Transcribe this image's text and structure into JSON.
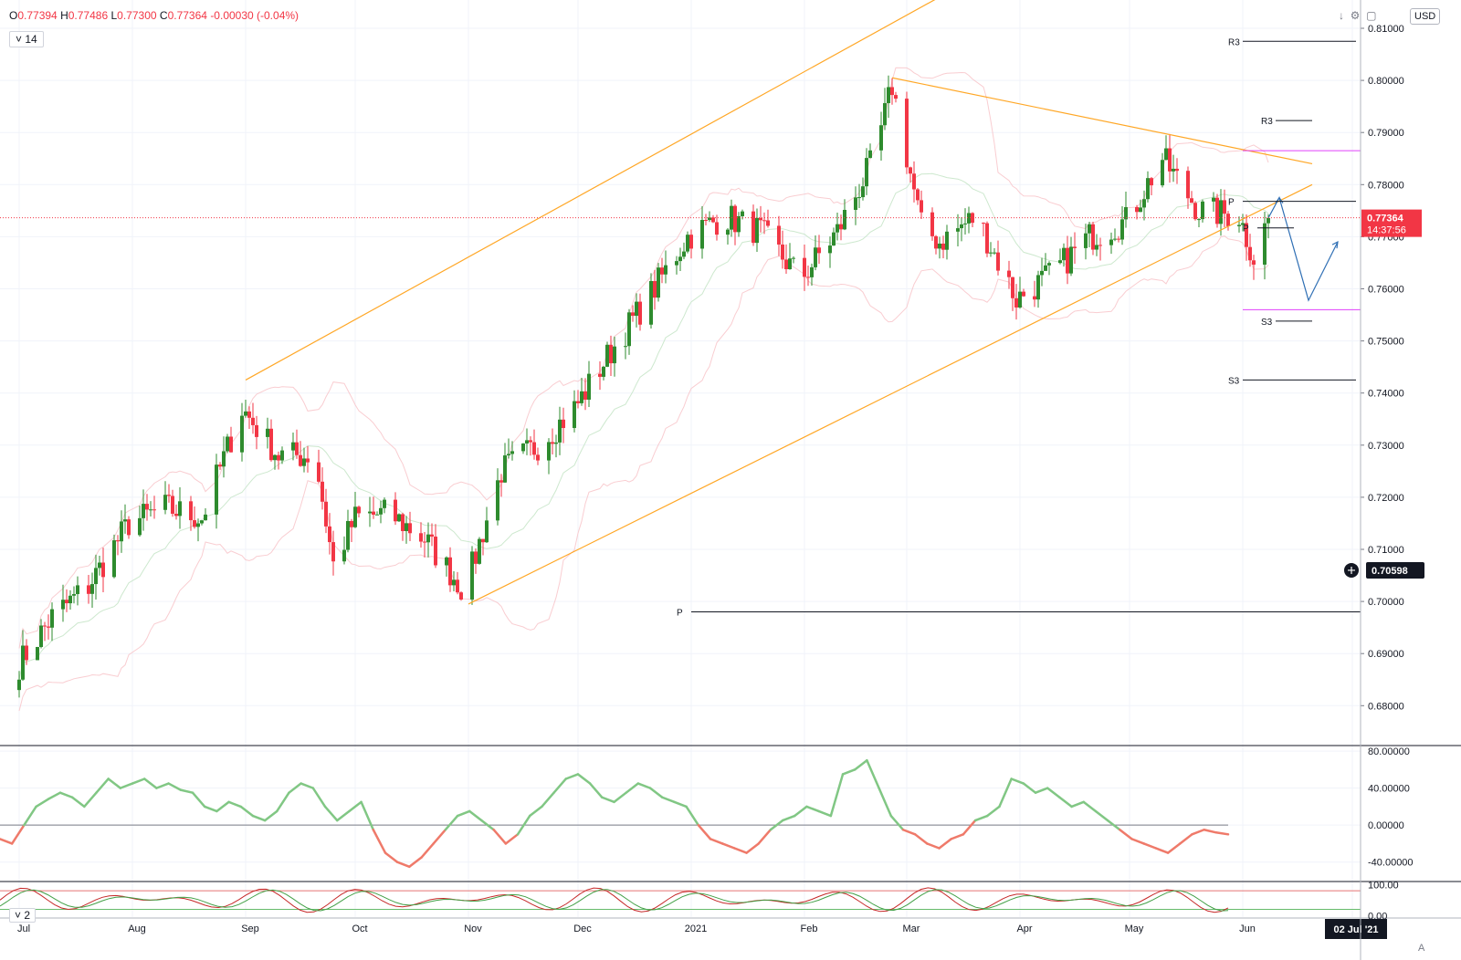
{
  "legend": {
    "open_key": "O",
    "open": "0.77394",
    "high_key": "H",
    "high": "0.77486",
    "low_key": "L",
    "low": "0.77300",
    "close_key": "C",
    "close": "0.77364",
    "change": "-0.00030 (-0.04%)"
  },
  "indicator_badge": "14",
  "indicator2_badge": "2",
  "currency_label": "USD",
  "auto_label": "A",
  "icons": {
    "down": "arrow-down-icon",
    "settings": "settings-icon",
    "expand": "expand-icon",
    "collapse": "chevron-down-icon"
  },
  "colors": {
    "up": "#2e8b2e",
    "down": "#f23645",
    "channel": "#ffa726",
    "pivot_magenta": "#e040fb",
    "rsi_up": "#81c784",
    "rsi_down": "#ef7a6a",
    "forecast": "#2f6fb4"
  },
  "price_labels": {
    "current": "0.77364",
    "countdown": "14:37:56",
    "crosshair": "0.70598"
  },
  "chart_data": [
    {
      "type": "candlestick",
      "symbol_currency": "USD",
      "x_labels": [
        "Jul",
        "Aug",
        "Sep",
        "Oct",
        "Nov",
        "Dec",
        "2021",
        "Feb",
        "Mar",
        "Apr",
        "May",
        "Jun"
      ],
      "date_badge": "02 Jul '21",
      "y_ticks": [
        "0.81000",
        "0.80000",
        "0.79000",
        "0.78000",
        "0.77000",
        "0.76000",
        "0.75000",
        "0.74000",
        "0.73000",
        "0.72000",
        "0.71000",
        "0.70000",
        "0.69000",
        "0.68000"
      ],
      "ylim": [
        0.6725,
        0.8125
      ],
      "close_path": [
        [
          "2020-07-01",
          0.688
        ],
        [
          "2020-07-10",
          0.697
        ],
        [
          "2020-07-20",
          0.703
        ],
        [
          "2020-07-31",
          0.715
        ],
        [
          "2020-08-10",
          0.718
        ],
        [
          "2020-08-20",
          0.716
        ],
        [
          "2020-08-31",
          0.737
        ],
        [
          "2020-09-10",
          0.728
        ],
        [
          "2020-09-20",
          0.728
        ],
        [
          "2020-09-25",
          0.707
        ],
        [
          "2020-10-01",
          0.716
        ],
        [
          "2020-10-10",
          0.717
        ],
        [
          "2020-10-20",
          0.712
        ],
        [
          "2020-10-31",
          0.702
        ],
        [
          "2020-11-10",
          0.725
        ],
        [
          "2020-11-20",
          0.73
        ],
        [
          "2020-11-30",
          0.737
        ],
        [
          "2020-12-10",
          0.748
        ],
        [
          "2020-12-20",
          0.758
        ],
        [
          "2020-12-31",
          0.77
        ],
        [
          "2021-01-10",
          0.774
        ],
        [
          "2021-01-20",
          0.771
        ],
        [
          "2021-01-31",
          0.762
        ],
        [
          "2021-02-10",
          0.771
        ],
        [
          "2021-02-20",
          0.785
        ],
        [
          "2021-02-25",
          0.799
        ],
        [
          "2021-03-05",
          0.772
        ],
        [
          "2021-03-10",
          0.769
        ],
        [
          "2021-03-20",
          0.774
        ],
        [
          "2021-03-31",
          0.758
        ],
        [
          "2021-04-10",
          0.763
        ],
        [
          "2021-04-20",
          0.77
        ],
        [
          "2021-04-30",
          0.773
        ],
        [
          "2021-05-10",
          0.785
        ],
        [
          "2021-05-20",
          0.775
        ],
        [
          "2021-05-31",
          0.774
        ],
        [
          "2021-06-04",
          0.766
        ],
        [
          "2021-06-08",
          0.7736
        ]
      ],
      "channel_lines": [
        {
          "from": [
            "2020-09-01",
            0.7425
          ],
          "to": [
            "2021-03-10",
            0.816
          ]
        },
        {
          "from": [
            "2020-11-01",
            0.6995
          ],
          "to": [
            "2021-06-20",
            0.78
          ]
        },
        {
          "from": [
            "2021-02-25",
            0.8005
          ],
          "to": [
            "2021-06-20",
            0.784
          ]
        }
      ],
      "horizontal_levels": [
        {
          "label": "R3",
          "value": 0.8075,
          "from": "2021-06-01",
          "to": "2021-07-02"
        },
        {
          "label": "R3",
          "value": 0.7923,
          "from": "2021-06-10",
          "to": "2021-06-20"
        },
        {
          "label": "",
          "value": 0.7865,
          "from": "2021-06-01",
          "to": "2021-07-12",
          "color": "magenta"
        },
        {
          "label": "P",
          "value": 0.7768,
          "from": "2021-06-01",
          "to": "2021-07-02"
        },
        {
          "label": "P",
          "value": 0.7717,
          "from": "2021-06-05",
          "to": "2021-06-15"
        },
        {
          "label": "",
          "value": 0.756,
          "from": "2021-06-01",
          "to": "2021-07-12",
          "color": "magenta"
        },
        {
          "label": "S3",
          "value": 0.7538,
          "from": "2021-06-10",
          "to": "2021-06-20"
        },
        {
          "label": "S3",
          "value": 0.7425,
          "from": "2021-06-01",
          "to": "2021-07-02"
        },
        {
          "label": "P",
          "value": 0.698,
          "from": "2021-01-01",
          "to": "2021-07-12"
        }
      ],
      "forecast_path": [
        [
          "2021-06-08",
          0.7736
        ],
        [
          "2021-06-11",
          0.7775
        ],
        [
          "2021-06-19",
          0.7578
        ],
        [
          "2021-06-27",
          0.769
        ]
      ]
    },
    {
      "type": "line",
      "indicator": "oscillator",
      "y_ticks": [
        "80.00000",
        "40.00000",
        "0.00000",
        "-40.00000"
      ],
      "ylim": [
        -60,
        85
      ],
      "values": [
        -15,
        -20,
        0,
        20,
        28,
        35,
        30,
        20,
        35,
        50,
        40,
        45,
        50,
        40,
        45,
        38,
        35,
        20,
        15,
        25,
        20,
        10,
        5,
        15,
        35,
        45,
        40,
        20,
        5,
        15,
        25,
        -5,
        -30,
        -40,
        -45,
        -35,
        -20,
        -5,
        10,
        15,
        5,
        -5,
        -20,
        -10,
        10,
        20,
        35,
        50,
        55,
        45,
        30,
        25,
        35,
        45,
        40,
        30,
        25,
        20,
        0,
        -15,
        -20,
        -25,
        -30,
        -20,
        -5,
        5,
        10,
        20,
        15,
        10,
        55,
        60,
        70,
        40,
        10,
        -5,
        -10,
        -20,
        -25,
        -15,
        -10,
        5,
        10,
        20,
        50,
        45,
        35,
        40,
        30,
        20,
        25,
        15,
        5,
        -5,
        -15,
        -20,
        -25,
        -30,
        -20,
        -10,
        -5,
        -8,
        -10
      ],
      "zero_line": 0
    },
    {
      "type": "line",
      "indicator": "oscillator",
      "y_ticks": [
        "100.00",
        "0.00"
      ],
      "ylim": [
        -5,
        110
      ]
    }
  ]
}
